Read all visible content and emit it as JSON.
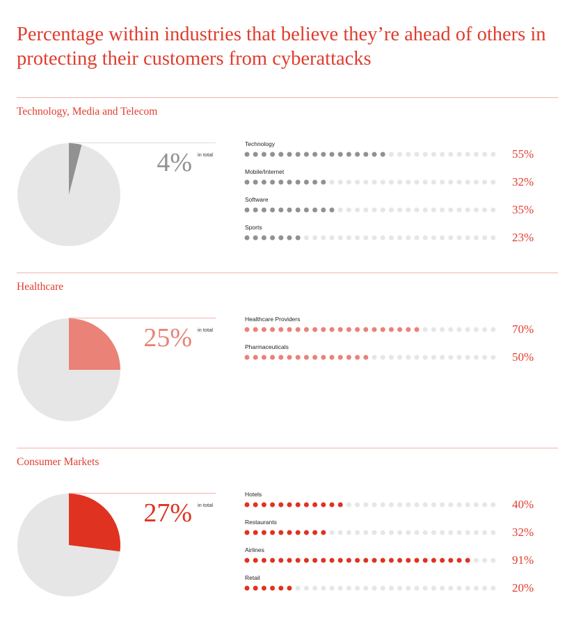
{
  "title": "Percentage within industries that believe they’re ahead of others in protecting their customers from cyberattacks",
  "colors": {
    "accent": "#e03c2d",
    "rule": "#f0b2aa",
    "dot_empty": "#e6e6e6",
    "pie_bg": "#e6e6e6",
    "guide": "#dddddd"
  },
  "chart_data": [
    {
      "type": "pie",
      "title": "Technology, Media and Telecom",
      "total": "4%",
      "total_value": 4,
      "total_label": "in total",
      "color": "#919191",
      "rows": [
        {
          "label": "Technology",
          "value": 55,
          "display": "55%"
        },
        {
          "label": "Mobile/Internet",
          "value": 32,
          "display": "32%"
        },
        {
          "label": "Software",
          "value": 35,
          "display": "35%"
        },
        {
          "label": "Sports",
          "value": 23,
          "display": "23%"
        }
      ]
    },
    {
      "type": "pie",
      "title": "Healthcare",
      "total": "25%",
      "total_value": 25,
      "total_label": "in total",
      "color": "#ea8277",
      "rows": [
        {
          "label": "Healthcare Providers",
          "value": 70,
          "display": "70%"
        },
        {
          "label": "Pharmaceuticals",
          "value": 50,
          "display": "50%"
        }
      ]
    },
    {
      "type": "pie",
      "title": "Consumer Markets",
      "total": "27%",
      "total_value": 27,
      "total_label": "in total",
      "color": "#e03221",
      "rows": [
        {
          "label": "Hotels",
          "value": 40,
          "display": "40%"
        },
        {
          "label": "Restaurants",
          "value": 32,
          "display": "32%"
        },
        {
          "label": "Airlines",
          "value": 91,
          "display": "91%"
        },
        {
          "label": "Retail",
          "value": 20,
          "display": "20%"
        }
      ]
    }
  ]
}
